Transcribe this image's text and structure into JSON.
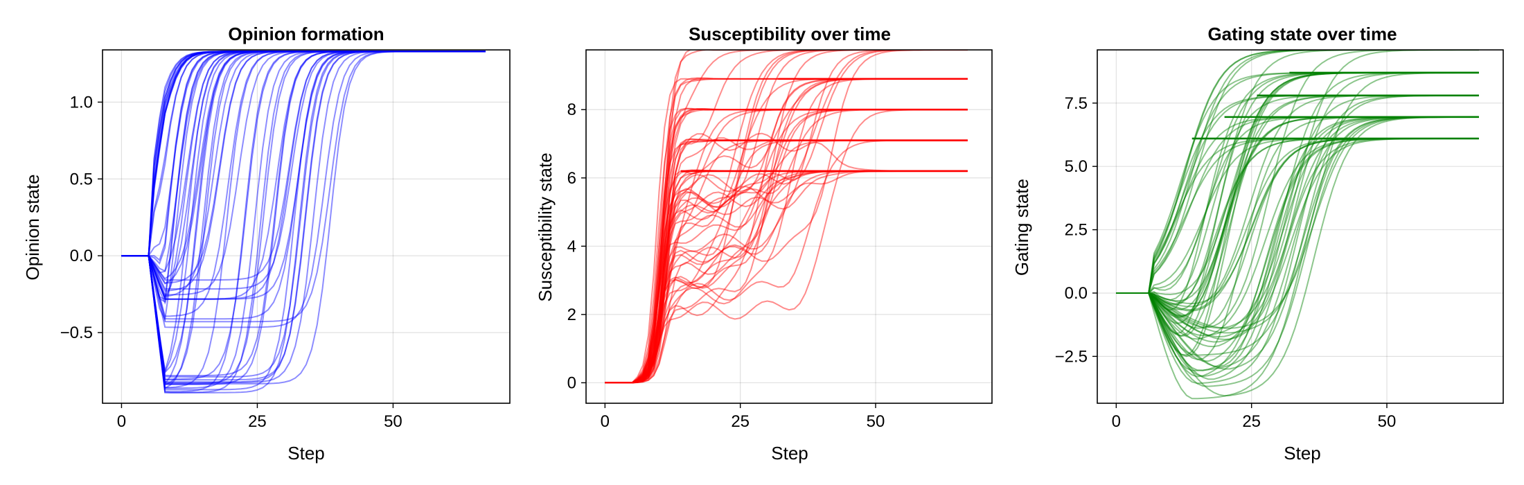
{
  "chart_data": [
    {
      "type": "line",
      "title": "Opinion formation",
      "xlabel": "Step",
      "ylabel": "Opinion state",
      "xlim": [
        -3.5,
        71.5
      ],
      "ylim": [
        -0.96,
        1.34
      ],
      "xticks": [
        0,
        25,
        50
      ],
      "yticks": [
        -0.5,
        0.0,
        0.5,
        1.0
      ],
      "ytick_labels": [
        "−0.5",
        "0.0",
        "0.5",
        "1.0"
      ],
      "xtick_labels": [
        "0",
        "25",
        "50"
      ],
      "grid": true,
      "color": "#0000ff",
      "n_trajectories": 60,
      "steps": 68,
      "pattern": "All start at 0.0 until step ~5, dip to between -0.9 and 0.6 around steps 7-17, then saturate at ~1.33 at onset steps between ~7 and ~40.",
      "series": [
        {
          "x": [
            0,
            5,
            8,
            12,
            20,
            30,
            40,
            68
          ],
          "values": [
            0,
            0,
            -0.85,
            -0.9,
            -0.9,
            -0.88,
            1.33,
            1.33
          ]
        },
        {
          "x": [
            0,
            5,
            8,
            12,
            20,
            26,
            35,
            68
          ],
          "values": [
            0,
            0,
            -0.3,
            -0.4,
            -0.4,
            -0.4,
            1.33,
            1.33
          ]
        },
        {
          "x": [
            0,
            5,
            7,
            9,
            11,
            68
          ],
          "values": [
            0,
            0,
            0.5,
            1.2,
            1.33,
            1.33
          ]
        }
      ]
    },
    {
      "type": "line",
      "title": "Susceptibility over time",
      "xlabel": "Step",
      "ylabel": "Susceptibility state",
      "xlim": [
        -3.5,
        71.5
      ],
      "ylim": [
        -0.6,
        9.75
      ],
      "xticks": [
        0,
        25,
        50
      ],
      "yticks": [
        0,
        2,
        4,
        6,
        8
      ],
      "ytick_labels": [
        "0",
        "2",
        "4",
        "6",
        "8"
      ],
      "xtick_labels": [
        "0",
        "25",
        "50"
      ],
      "grid": true,
      "color": "#ff0000",
      "n_trajectories": 60,
      "steps": 68,
      "pattern": "Start at 0 until step ~5, rise steeply around step 10 to intermediate levels 1.5-7.5, then climb to plateaus near 6.2, 7.1, 8.0, 8.9 and 9.75 by steps 15-45.",
      "plateau_levels": [
        6.2,
        7.1,
        8.0,
        8.9,
        9.75
      ],
      "series": [
        {
          "x": [
            0,
            5,
            10,
            14,
            68
          ],
          "values": [
            0,
            0,
            4,
            8.0,
            8.0
          ]
        },
        {
          "x": [
            0,
            5,
            10,
            20,
            38,
            45,
            68
          ],
          "values": [
            0,
            0,
            1.8,
            1.8,
            6.2,
            7.1,
            7.1
          ]
        }
      ]
    },
    {
      "type": "line",
      "title": "Gating state over time",
      "xlabel": "Step",
      "ylabel": "Gating state",
      "xlim": [
        -3.5,
        71.5
      ],
      "ylim": [
        -4.35,
        9.6
      ],
      "xticks": [
        0,
        25,
        50
      ],
      "yticks": [
        -2.5,
        0.0,
        2.5,
        5.0,
        7.5
      ],
      "ytick_labels": [
        "−2.5",
        "0.0",
        "2.5",
        "5.0",
        "7.5"
      ],
      "xtick_labels": [
        "0",
        "25",
        "50"
      ],
      "grid": true,
      "color": "#008000",
      "n_trajectories": 60,
      "steps": 68,
      "pattern": "Start at 0 until step ~6, dip to between 0 and -4.2 around steps 12-25, then rise sigmoidally to plateaus near 6.1, 6.95, 7.8, 8.7 and 9.6.",
      "plateau_levels": [
        6.1,
        6.95,
        7.8,
        8.7,
        9.6
      ],
      "series": [
        {
          "x": [
            0,
            6,
            12,
            18,
            68
          ],
          "values": [
            0,
            0,
            3,
            6.5,
            7.8
          ]
        },
        {
          "x": [
            0,
            6,
            20,
            30,
            45,
            68
          ],
          "values": [
            0,
            0,
            -4.0,
            -2.5,
            8.5,
            9.6
          ]
        }
      ]
    }
  ]
}
